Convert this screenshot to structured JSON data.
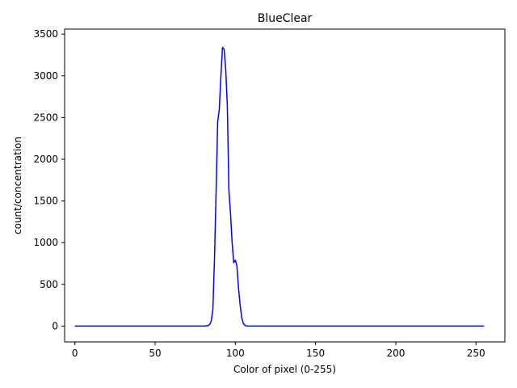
{
  "chart_data": {
    "type": "line",
    "title": "BlueClear",
    "xlabel": "Color of pixel (0-255)",
    "ylabel": "count/concentration",
    "xlim": [
      -6.4,
      268.0
    ],
    "ylim": [
      -190,
      3560
    ],
    "xticks": [
      0,
      50,
      100,
      150,
      200,
      250
    ],
    "yticks": [
      0,
      500,
      1000,
      1500,
      2000,
      2500,
      3000,
      3500
    ],
    "grid": false,
    "legend": "none",
    "series": [
      {
        "color": "#0000ff",
        "x": [
          0,
          10,
          20,
          30,
          40,
          50,
          60,
          70,
          80,
          83,
          84,
          85,
          86,
          87,
          88,
          89,
          90,
          91,
          92,
          93,
          94,
          95,
          96,
          97,
          98,
          99,
          100,
          101,
          102,
          103,
          104,
          105,
          106,
          107,
          108,
          110,
          120,
          150,
          200,
          255
        ],
        "y": [
          0,
          0,
          0,
          0,
          0,
          0,
          0,
          0,
          0,
          5,
          20,
          60,
          200,
          800,
          1600,
          2450,
          2600,
          3000,
          3340,
          3320,
          3080,
          2650,
          1620,
          1350,
          1000,
          760,
          790,
          720,
          450,
          250,
          100,
          30,
          8,
          2,
          0,
          0,
          0,
          0,
          0,
          0
        ]
      }
    ]
  }
}
